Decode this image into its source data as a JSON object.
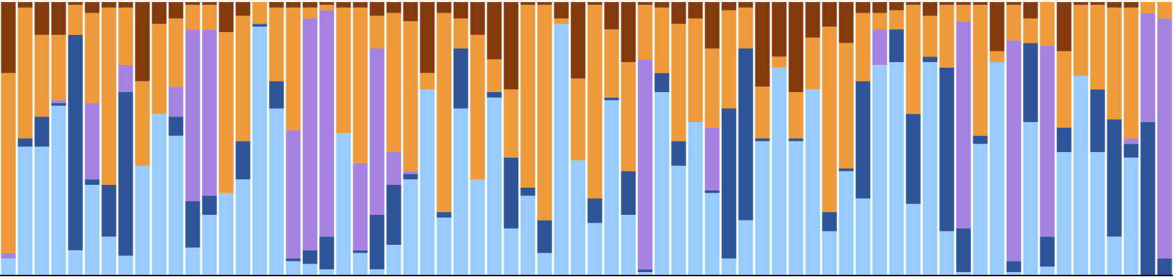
{
  "chart_data": {
    "type": "stacked_bar",
    "categories": [
      null,
      null,
      null,
      null,
      null,
      null,
      null,
      null,
      null,
      null,
      null,
      null,
      null,
      null,
      null,
      null,
      null,
      null,
      null,
      null,
      null,
      null,
      null,
      null,
      null,
      null,
      null,
      null,
      null,
      null,
      null,
      null,
      null,
      null,
      null,
      null,
      null,
      null,
      null,
      null,
      null,
      null,
      null,
      null,
      null,
      null,
      null,
      null,
      null,
      null,
      null,
      null,
      null,
      null,
      null,
      null,
      null,
      null,
      null,
      null,
      null,
      null,
      null,
      null,
      null,
      null,
      null,
      null,
      null,
      null
    ],
    "ylim": [
      0,
      100
    ],
    "series": [
      {
        "color": "#99ccff",
        "values": [
          6,
          47,
          47,
          62,
          9,
          33,
          14,
          7,
          40,
          59,
          51,
          10,
          22,
          30,
          35,
          91,
          61,
          5,
          4,
          2,
          52,
          8,
          2,
          11,
          35,
          68,
          21,
          61,
          35,
          65,
          17,
          29,
          8,
          92,
          42,
          19,
          64,
          22,
          1,
          67,
          40,
          56,
          30,
          6,
          20,
          49,
          76,
          49,
          68,
          16,
          38,
          28,
          77,
          78,
          26,
          78,
          16,
          1,
          48,
          78,
          1,
          56,
          3,
          45,
          73,
          45,
          14,
          43,
          0,
          0
        ]
      },
      {
        "color": "#2e5597",
        "values": [
          0,
          3,
          11,
          1,
          79,
          2,
          19,
          60,
          0,
          0,
          7,
          17,
          7,
          0,
          14,
          1,
          10,
          1,
          5,
          12,
          0,
          1,
          20,
          22,
          2,
          0,
          2,
          22,
          0,
          2,
          26,
          3,
          12,
          0,
          0,
          9,
          1,
          16,
          1,
          7,
          9,
          0,
          1,
          55,
          63,
          1,
          0,
          1,
          0,
          7,
          1,
          43,
          0,
          12,
          33,
          2,
          60,
          16,
          3,
          0,
          4,
          29,
          11,
          9,
          0,
          23,
          43,
          5,
          56,
          6
        ]
      },
      {
        "color": "#a683e0",
        "values": [
          2,
          0,
          0,
          1,
          0,
          28,
          0,
          10,
          0,
          0,
          11,
          63,
          61,
          0,
          0,
          0,
          0,
          47,
          85,
          83,
          0,
          32,
          61,
          12,
          1,
          0,
          0,
          0,
          0,
          0,
          0,
          0,
          0,
          0,
          0,
          0,
          0,
          0,
          77,
          0,
          0,
          0,
          23,
          0,
          0,
          0,
          0,
          0,
          0,
          0,
          0,
          0,
          13,
          0,
          0,
          0,
          0,
          76,
          0,
          0,
          81,
          0,
          70,
          0,
          0,
          0,
          0,
          2,
          40,
          88
        ]
      },
      {
        "color": "#ee9a3a",
        "values": [
          66,
          48,
          30,
          24,
          11,
          33,
          65,
          21,
          31,
          33,
          25,
          9,
          9,
          59,
          46,
          8,
          27,
          45,
          4,
          2,
          46,
          57,
          12,
          51,
          55,
          6,
          73,
          11,
          53,
          12,
          25,
          67,
          79,
          2,
          30,
          71,
          25,
          40,
          20,
          24,
          43,
          38,
          29,
          36,
          15,
          19,
          4,
          17,
          19,
          68,
          46,
          25,
          6,
          7,
          40,
          15,
          23,
          6,
          48,
          4,
          13,
          9,
          16,
          28,
          26,
          31,
          41,
          48,
          4,
          6
        ]
      },
      {
        "color": "#843c0c",
        "values": [
          26,
          2,
          12,
          12,
          1,
          4,
          2,
          2,
          29,
          8,
          6,
          1,
          1,
          11,
          5,
          0,
          2,
          2,
          2,
          1,
          2,
          2,
          5,
          4,
          7,
          26,
          4,
          6,
          12,
          21,
          32,
          1,
          1,
          6,
          28,
          1,
          10,
          22,
          1,
          2,
          8,
          6,
          17,
          3,
          2,
          31,
          20,
          33,
          13,
          9,
          15,
          4,
          4,
          3,
          1,
          5,
          1,
          1,
          1,
          18,
          1,
          6,
          0,
          18,
          1,
          1,
          2,
          2,
          0,
          0
        ]
      }
    ]
  }
}
